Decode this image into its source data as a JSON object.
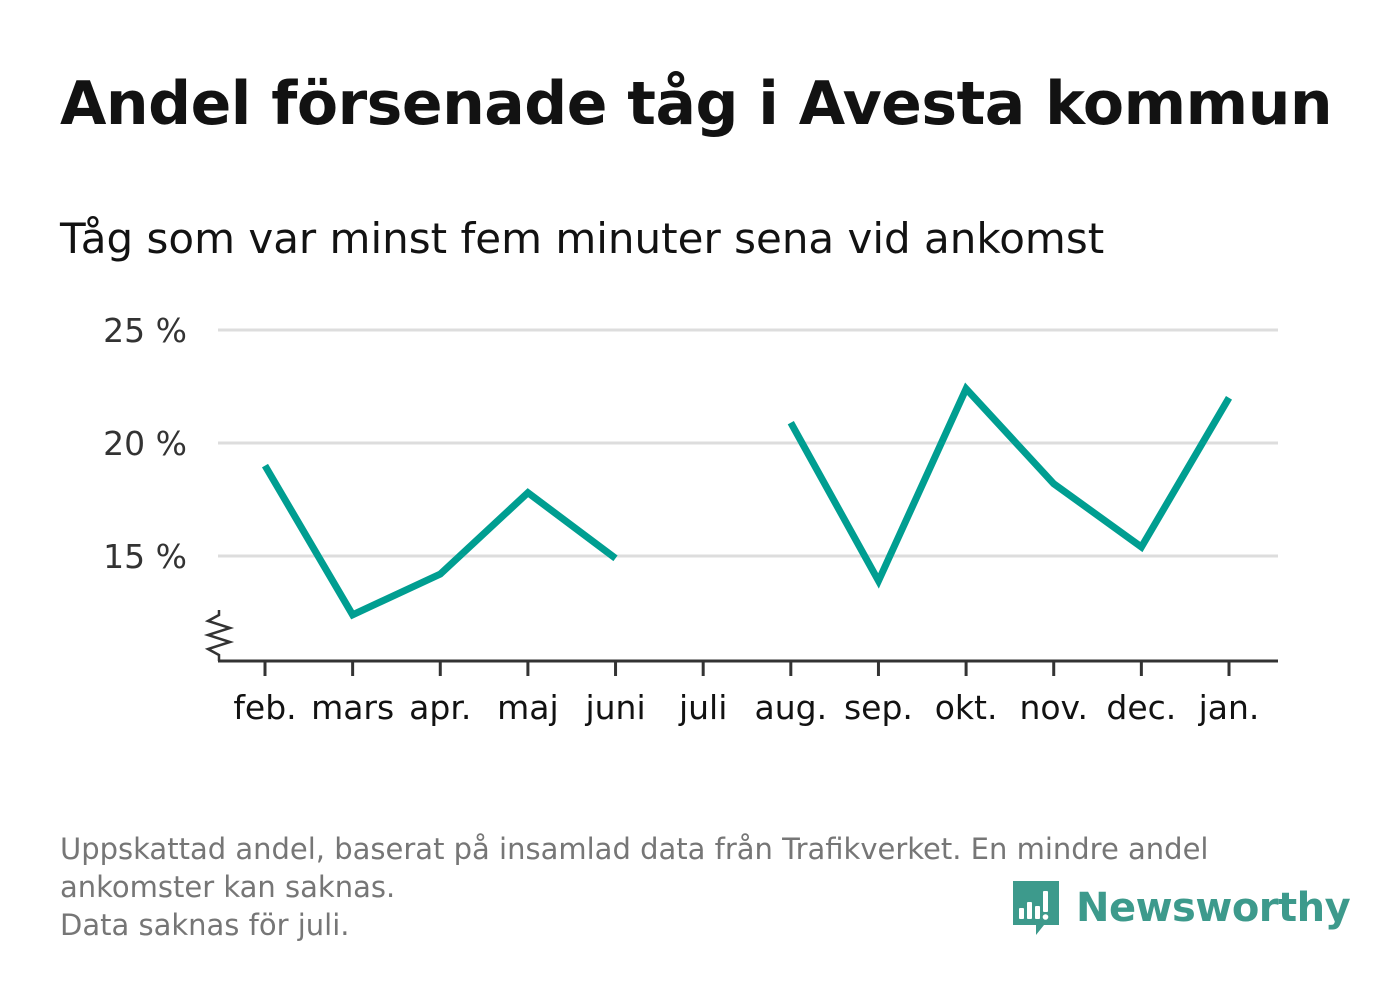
{
  "title": "Andel försenade tåg i Avesta kommun",
  "subtitle": "Tåg som var minst fem minuter sena vid ankomst",
  "footer": {
    "line1": "Uppskattad andel, baserat på insamlad data från Trafikverket. En mindre andel",
    "line2": "ankomster kan saknas.",
    "line3": "Data saknas för juli."
  },
  "brand": {
    "name": "Newsworthy",
    "icon": "newsworthy-logo-icon",
    "color": "#3d9a8c"
  },
  "colors": {
    "line": "#009e91",
    "grid": "#dddddd",
    "axis": "#333333",
    "text": "#333333"
  },
  "chart_data": {
    "type": "line",
    "title": "Andel försenade tåg i Avesta kommun",
    "subtitle": "Tåg som var minst fem minuter sena vid ankomst",
    "categories": [
      "feb.",
      "mars",
      "apr.",
      "maj",
      "juni",
      "juli",
      "aug.",
      "sep.",
      "okt.",
      "nov.",
      "dec.",
      "jan."
    ],
    "series": [
      {
        "values": [
          19.0,
          12.4,
          14.2,
          17.8,
          14.9,
          null,
          20.9,
          13.9,
          22.4,
          18.2,
          15.4,
          22.0
        ]
      }
    ],
    "ylim": [
      10.5,
      25
    ],
    "yticks": [
      15,
      20,
      25
    ],
    "ytick_labels": [
      "15 %",
      "20 %",
      "25 %"
    ],
    "axis_break": true,
    "grid": true,
    "legend": "none"
  }
}
